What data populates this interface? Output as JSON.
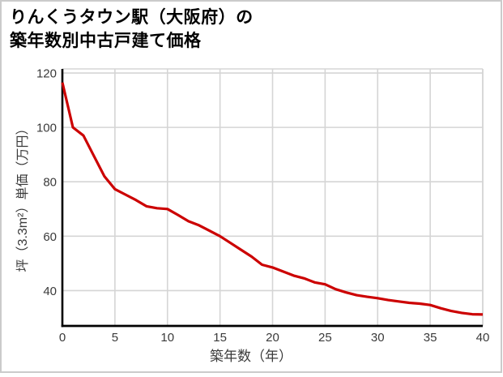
{
  "card": {
    "title_line1": "りんくうタウン駅（大阪府）の",
    "title_line2": "築年数別中古戸建て価格"
  },
  "chart_data": {
    "type": "line",
    "title": "りんくうタウン駅（大阪府）の築年数別中古戸建て価格",
    "xlabel": "築年数（年）",
    "ylabel": "坪（3.3m²）単価（万円）",
    "x": [
      0,
      1,
      2,
      3,
      4,
      5,
      6,
      7,
      8,
      9,
      10,
      11,
      12,
      13,
      14,
      15,
      16,
      17,
      18,
      19,
      20,
      21,
      22,
      23,
      24,
      25,
      26,
      27,
      28,
      29,
      30,
      31,
      32,
      33,
      34,
      35,
      36,
      37,
      38,
      39,
      40
    ],
    "values": [
      116.5,
      100,
      97,
      89.5,
      82,
      77.3,
      75.3,
      73.3,
      71,
      70.3,
      70,
      67.8,
      65.5,
      64,
      62,
      60,
      57.5,
      55,
      52.5,
      49.5,
      48.5,
      47,
      45.5,
      44.5,
      43,
      42.3,
      40.5,
      39.3,
      38.3,
      37.7,
      37.2,
      36.5,
      36,
      35.5,
      35.2,
      34.7,
      33.5,
      32.5,
      31.8,
      31.3,
      31.2
    ],
    "x_ticks": [
      0,
      5,
      10,
      15,
      20,
      25,
      30,
      35,
      40
    ],
    "y_ticks": [
      40,
      60,
      80,
      100,
      120
    ],
    "xlim": [
      0,
      40
    ],
    "ylim": [
      27,
      121.5
    ],
    "grid": true,
    "legend": "none",
    "line_color": "#cc0000",
    "axis_color": "#000000",
    "grid_color": "#d5d5d5",
    "tick_label_color": "#3a3a3a"
  }
}
